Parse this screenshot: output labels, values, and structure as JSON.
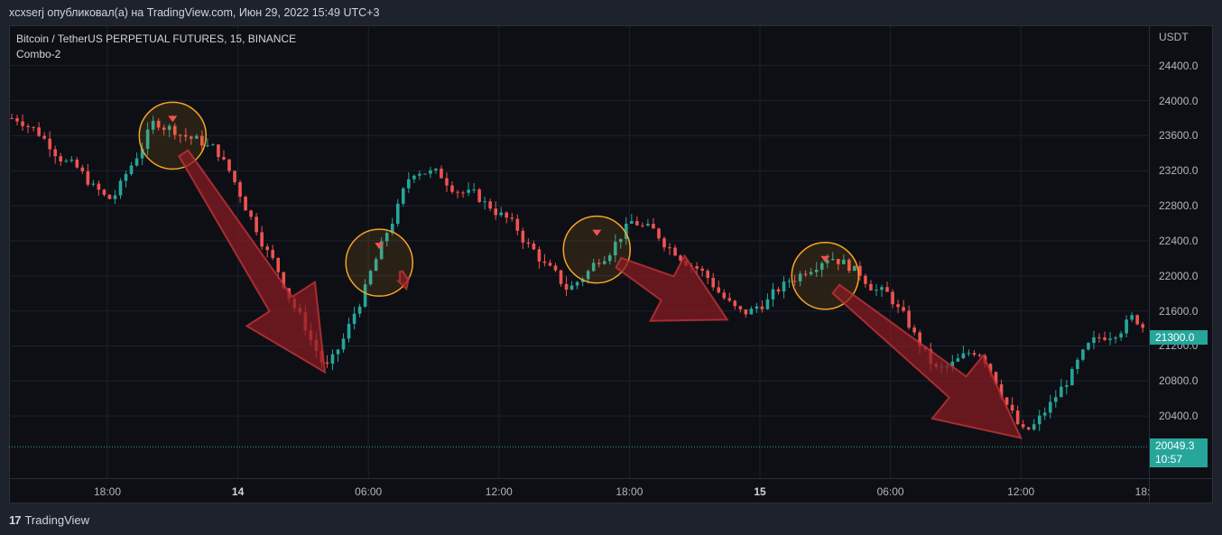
{
  "header": {
    "publisher": "xcxserj опубликовал(а) на TradingView.com, Июн 29, 2022 15:49 UTC+3"
  },
  "legend": {
    "symbol": "Bitcoin / TetherUS PERPETUAL FUTURES, 15, BINANCE",
    "indicator": "Combo-2"
  },
  "footer": {
    "brand": "TradingView"
  },
  "colors": {
    "up": "#26a69a",
    "down": "#ef5350",
    "arrow": "#8b1c22",
    "circle": "#f5a623",
    "background": "#0e0f15"
  },
  "price_tags": {
    "last_price": "21300.0",
    "lowest_price": "20049.3",
    "countdown": "10:57"
  },
  "chart_data": {
    "type": "candlestick",
    "title": "Bitcoin / TetherUS PERPETUAL FUTURES, 15, BINANCE",
    "y_axis_unit": "USDT",
    "ylim": [
      19700,
      24800
    ],
    "y_ticks": [
      "24400.0",
      "24000.0",
      "23600.0",
      "23200.0",
      "22800.0",
      "22400.0",
      "22000.0",
      "21600.0",
      "21200.0",
      "20800.0",
      "20400.0"
    ],
    "x_ticks": [
      {
        "label": "18:00",
        "bold": false
      },
      {
        "label": "14",
        "bold": true
      },
      {
        "label": "06:00",
        "bold": false
      },
      {
        "label": "12:00",
        "bold": false
      },
      {
        "label": "18:00",
        "bold": false
      },
      {
        "label": "15",
        "bold": true
      },
      {
        "label": "06:00",
        "bold": false
      },
      {
        "label": "12:00",
        "bold": false
      },
      {
        "label": "18:",
        "bold": false
      }
    ],
    "last_price": 21300.0,
    "lowest_price_line": 20049.3,
    "sell_signals": [
      {
        "time": "13 Jun 21:00",
        "price": 23600
      },
      {
        "time": "14 Jun 06:30",
        "price": 22150
      },
      {
        "time": "14 Jun 16:30",
        "price": 22300
      },
      {
        "time": "15 Jun 03:00",
        "price": 22000
      }
    ],
    "trend_arrows": [
      {
        "from": {
          "time": "13 Jun 21:30",
          "price": 23400
        },
        "to": {
          "time": "14 Jun 04:00",
          "price": 20900
        }
      },
      {
        "from": {
          "time": "14 Jun 07:30",
          "price": 22050
        },
        "to": {
          "time": "14 Jun 07:45",
          "price": 21850
        }
      },
      {
        "from": {
          "time": "14 Jun 17:30",
          "price": 22150
        },
        "to": {
          "time": "14 Jun 22:30",
          "price": 21500
        }
      },
      {
        "from": {
          "time": "15 Jun 03:30",
          "price": 21850
        },
        "to": {
          "time": "15 Jun 12:00",
          "price": 20150
        }
      }
    ],
    "key_prices": [
      {
        "time": "13 Jun 14:00",
        "price": 23800
      },
      {
        "time": "13 Jun 18:00",
        "price": 22800
      },
      {
        "time": "13 Jun 20:00",
        "price": 23800
      },
      {
        "time": "13 Jun 23:00",
        "price": 23400
      },
      {
        "time": "14 Jun 04:00",
        "price": 20850
      },
      {
        "time": "14 Jun 08:00",
        "price": 23300
      },
      {
        "time": "14 Jun 12:00",
        "price": 22700
      },
      {
        "time": "14 Jun 15:00",
        "price": 21800
      },
      {
        "time": "14 Jun 18:00",
        "price": 22650
      },
      {
        "time": "14 Jun 21:00",
        "price": 22100
      },
      {
        "time": "14 Jun 23:00",
        "price": 21500
      },
      {
        "time": "15 Jun 03:00",
        "price": 22300
      },
      {
        "time": "15 Jun 06:00",
        "price": 21700
      },
      {
        "time": "15 Jun 08:00",
        "price": 20850
      },
      {
        "time": "15 Jun 10:00",
        "price": 21200
      },
      {
        "time": "15 Jun 12:00",
        "price": 20100
      },
      {
        "time": "15 Jun 15:00",
        "price": 21200
      },
      {
        "time": "15 Jun 17:00",
        "price": 21550
      },
      {
        "time": "15 Jun 18:00",
        "price": 21300
      }
    ]
  }
}
